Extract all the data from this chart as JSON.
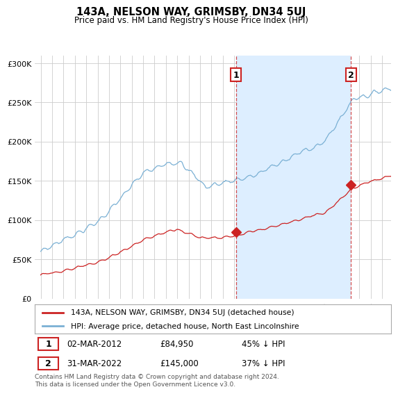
{
  "title": "143A, NELSON WAY, GRIMSBY, DN34 5UJ",
  "subtitle": "Price paid vs. HM Land Registry's House Price Index (HPI)",
  "sale1_date": "02-MAR-2012",
  "sale1_price": 84950,
  "sale1_label": "1",
  "sale1_pct": "45% ↓ HPI",
  "sale1_year": 2012.17,
  "sale2_date": "31-MAR-2022",
  "sale2_price": 145000,
  "sale2_label": "2",
  "sale2_pct": "37% ↓ HPI",
  "sale2_year": 2022.25,
  "legend1": "143A, NELSON WAY, GRIMSBY, DN34 5UJ (detached house)",
  "legend2": "HPI: Average price, detached house, North East Lincolnshire",
  "footer": "Contains HM Land Registry data © Crown copyright and database right 2024.\nThis data is licensed under the Open Government Licence v3.0.",
  "line1_color": "#cc2222",
  "line2_color": "#7ab0d4",
  "shade_color": "#ddeeff",
  "vline_color": "#cc2222",
  "marker_color": "#cc2222",
  "ylim": [
    0,
    310000
  ],
  "yticks": [
    0,
    50000,
    100000,
    150000,
    200000,
    250000,
    300000
  ],
  "xmin": 1994.5,
  "xmax": 2025.8,
  "background_color": "#ffffff",
  "grid_color": "#cccccc"
}
